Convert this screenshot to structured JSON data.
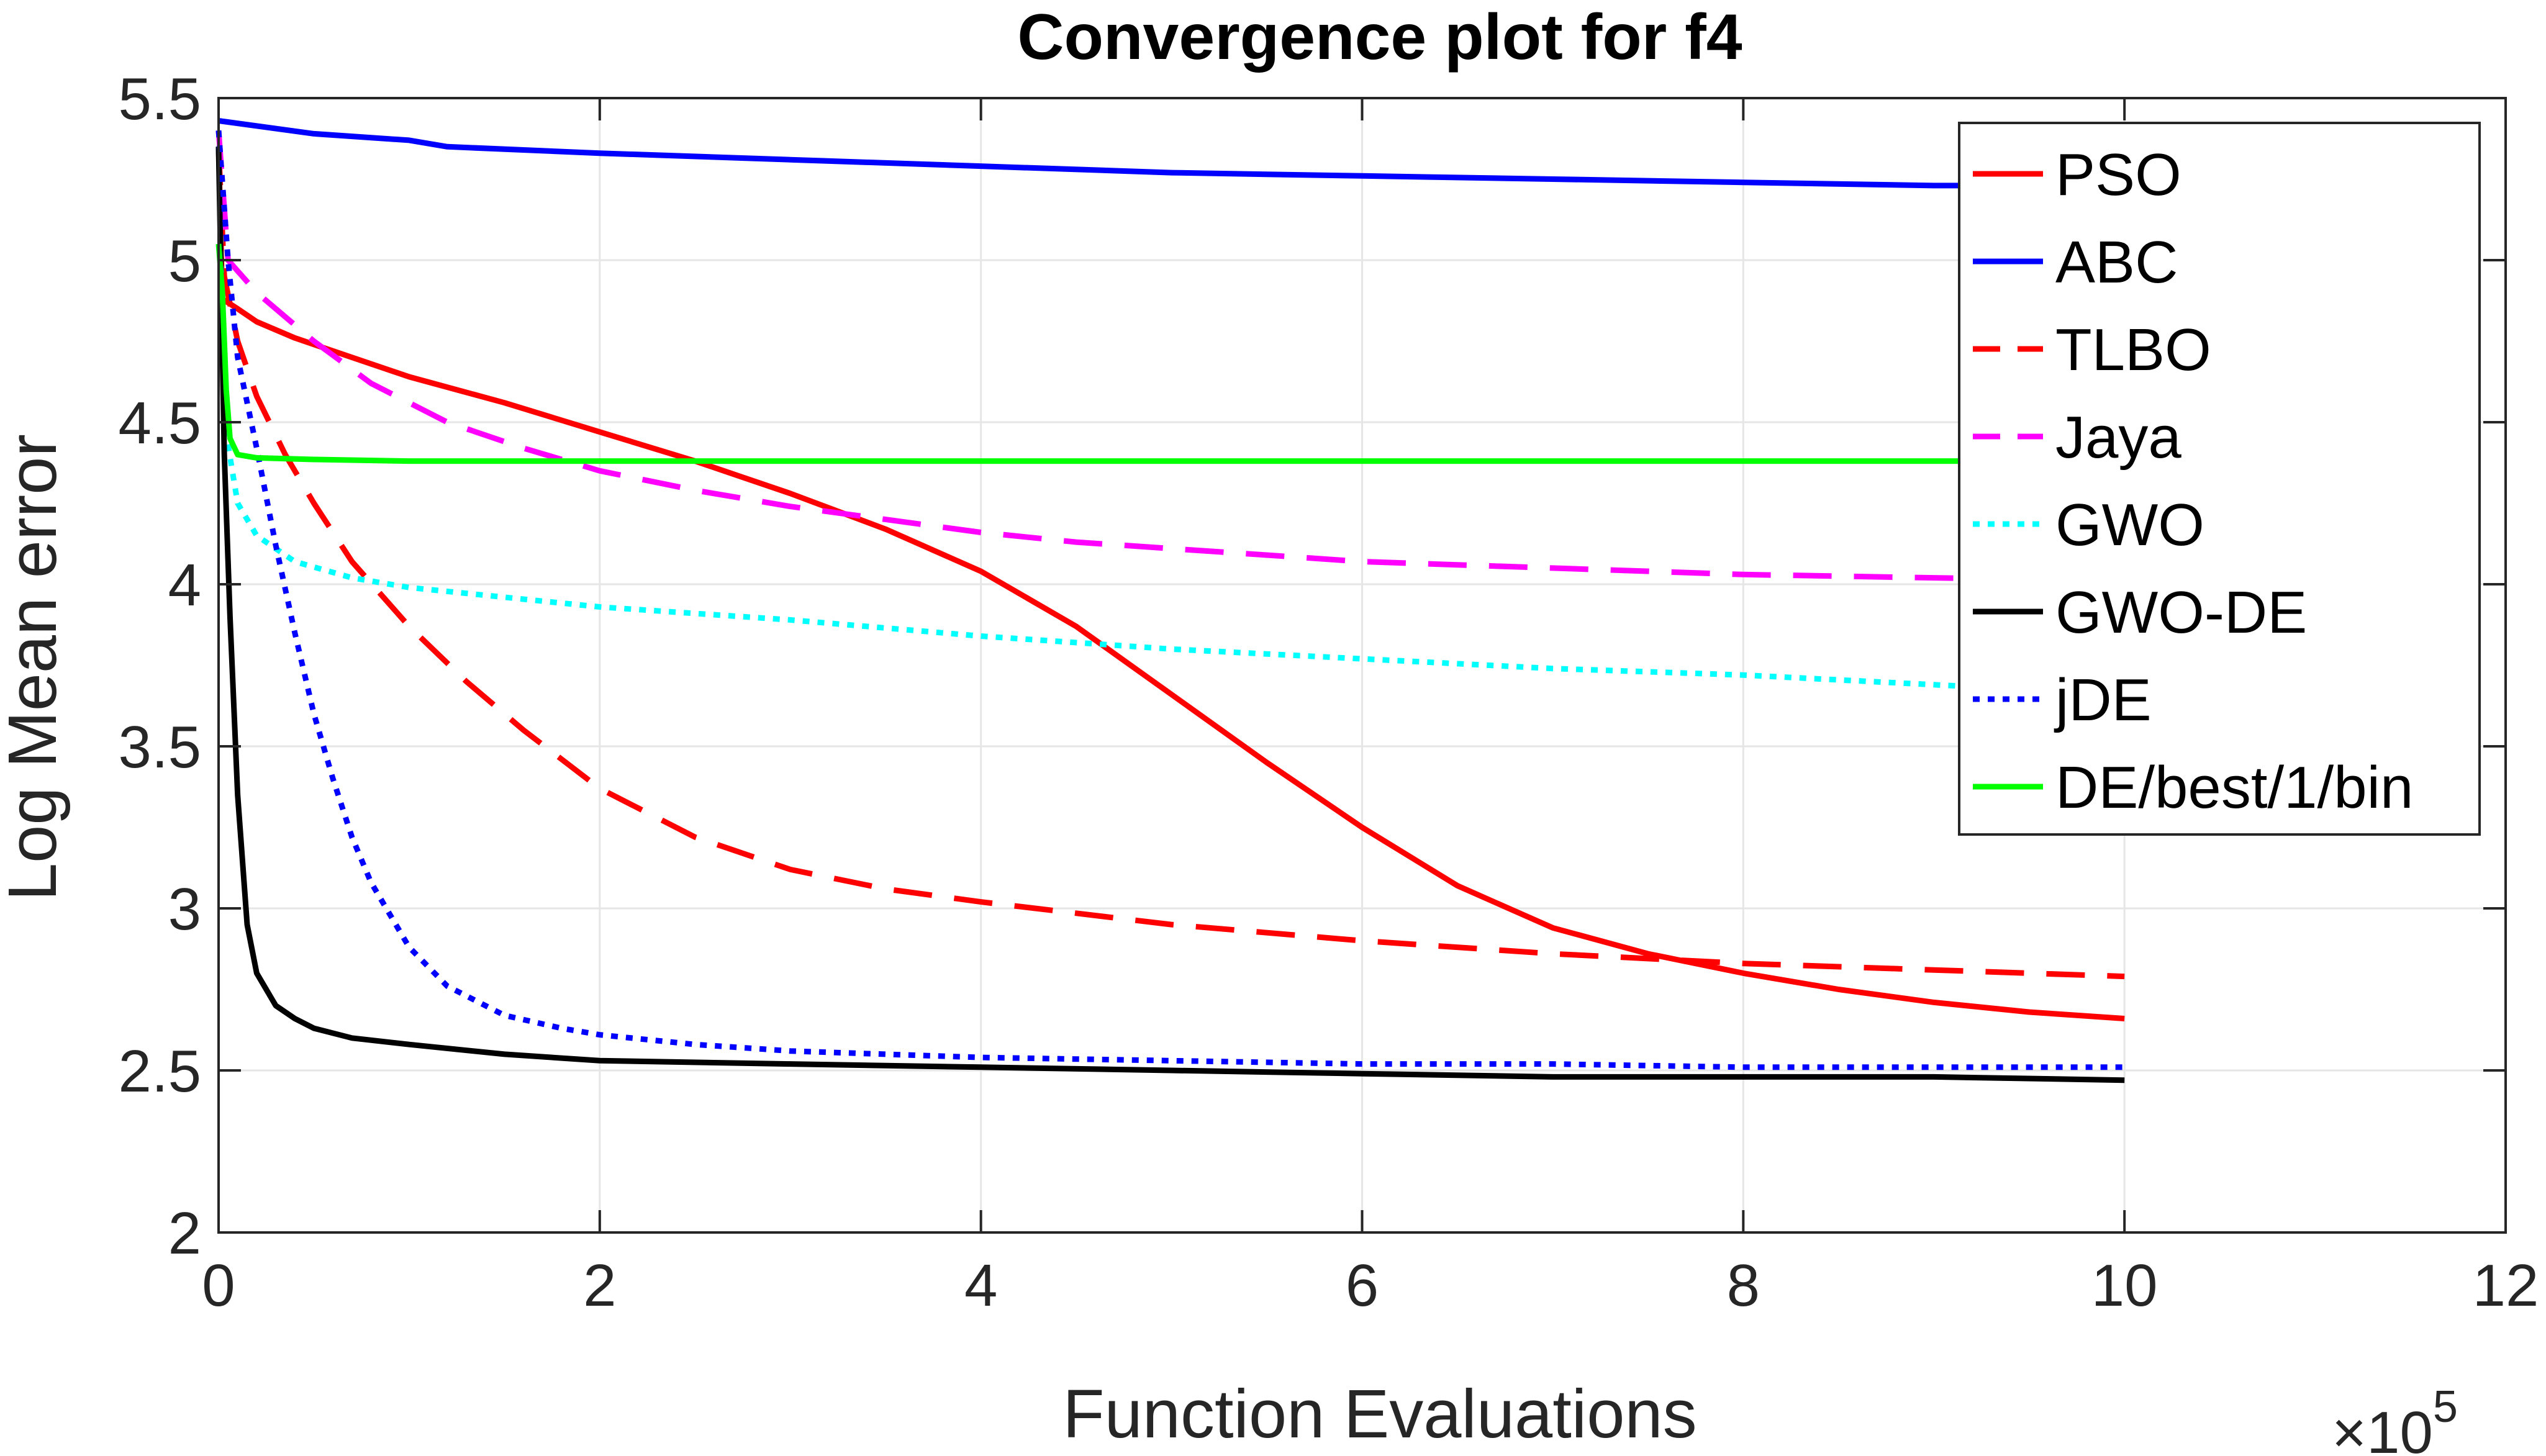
{
  "chart_data": {
    "type": "line",
    "title": "Convergence plot for f4",
    "xlabel": "Function Evaluations",
    "ylabel": "Log Mean error",
    "x_exponent_label": "×10",
    "x_exponent": "5",
    "xlim": [
      0,
      12
    ],
    "ylim": [
      2,
      5.5
    ],
    "xticks": [
      "0",
      "2",
      "4",
      "6",
      "8",
      "10",
      "12"
    ],
    "yticks": [
      "2",
      "2.5",
      "3",
      "3.5",
      "4",
      "4.5",
      "5",
      "5.5"
    ],
    "grid": true,
    "legend_position": "top-right",
    "series": [
      {
        "name": "PSO",
        "color": "#ff0000",
        "style": "solid",
        "x": [
          0.0,
          0.02,
          0.1,
          0.2,
          0.4,
          0.7,
          1.0,
          1.5,
          2.0,
          2.5,
          3.0,
          3.5,
          4.0,
          4.5,
          5.0,
          5.5,
          6.0,
          6.5,
          7.0,
          7.5,
          8.0,
          8.5,
          9.0,
          9.5,
          10.0
        ],
        "y": [
          5.35,
          4.88,
          4.85,
          4.81,
          4.76,
          4.7,
          4.64,
          4.56,
          4.47,
          4.38,
          4.28,
          4.17,
          4.04,
          3.87,
          3.66,
          3.45,
          3.25,
          3.07,
          2.94,
          2.86,
          2.8,
          2.75,
          2.71,
          2.68,
          2.66
        ]
      },
      {
        "name": "ABC",
        "color": "#0000ff",
        "style": "solid",
        "x": [
          0.0,
          0.5,
          1.0,
          1.2,
          2.0,
          3.0,
          4.0,
          5.0,
          6.0,
          7.0,
          8.0,
          9.0,
          10.0
        ],
        "y": [
          5.43,
          5.39,
          5.37,
          5.35,
          5.33,
          5.31,
          5.29,
          5.27,
          5.26,
          5.25,
          5.24,
          5.23,
          5.23
        ]
      },
      {
        "name": "TLBO",
        "color": "#ff0000",
        "style": "dashed",
        "x": [
          0.0,
          0.03,
          0.1,
          0.2,
          0.35,
          0.5,
          0.7,
          1.0,
          1.3,
          1.6,
          2.0,
          2.5,
          3.0,
          3.5,
          4.0,
          5.0,
          6.0,
          7.0,
          8.0,
          9.0,
          10.0
        ],
        "y": [
          5.35,
          4.95,
          4.75,
          4.58,
          4.4,
          4.25,
          4.07,
          3.87,
          3.7,
          3.55,
          3.37,
          3.22,
          3.12,
          3.06,
          3.02,
          2.95,
          2.9,
          2.86,
          2.83,
          2.81,
          2.79
        ]
      },
      {
        "name": "Jaya",
        "color": "#ff00ff",
        "style": "dashed",
        "x": [
          0.0,
          0.05,
          0.2,
          0.5,
          0.8,
          1.2,
          1.6,
          2.0,
          2.5,
          3.0,
          3.5,
          4.0,
          4.5,
          5.0,
          5.5,
          6.0,
          7.0,
          8.0,
          9.0,
          10.0
        ],
        "y": [
          5.4,
          5.0,
          4.9,
          4.75,
          4.62,
          4.5,
          4.42,
          4.35,
          4.29,
          4.24,
          4.2,
          4.16,
          4.13,
          4.11,
          4.09,
          4.07,
          4.05,
          4.03,
          4.02,
          4.01
        ]
      },
      {
        "name": "GWO",
        "color": "#00ffff",
        "style": "dotted",
        "x": [
          0.0,
          0.03,
          0.1,
          0.2,
          0.4,
          0.7,
          1.0,
          1.5,
          2.0,
          3.0,
          4.0,
          5.0,
          6.0,
          7.0,
          8.0,
          9.0,
          10.0
        ],
        "y": [
          5.35,
          4.5,
          4.25,
          4.15,
          4.07,
          4.02,
          3.99,
          3.96,
          3.93,
          3.89,
          3.84,
          3.8,
          3.77,
          3.74,
          3.72,
          3.69,
          3.66
        ]
      },
      {
        "name": "GWO-DE",
        "color": "#000000",
        "style": "solid",
        "x": [
          0.0,
          0.03,
          0.06,
          0.1,
          0.15,
          0.2,
          0.3,
          0.4,
          0.5,
          0.7,
          1.0,
          1.5,
          2.0,
          3.0,
          4.0,
          5.0,
          6.0,
          7.0,
          8.0,
          9.0,
          10.0
        ],
        "y": [
          5.35,
          4.4,
          3.9,
          3.35,
          2.95,
          2.8,
          2.7,
          2.66,
          2.63,
          2.6,
          2.58,
          2.55,
          2.53,
          2.52,
          2.51,
          2.5,
          2.49,
          2.48,
          2.48,
          2.48,
          2.47
        ]
      },
      {
        "name": "jDE",
        "color": "#0000ff",
        "style": "dotted",
        "x": [
          0.0,
          0.05,
          0.1,
          0.2,
          0.3,
          0.4,
          0.5,
          0.6,
          0.7,
          0.8,
          1.0,
          1.2,
          1.5,
          1.8,
          2.0,
          2.5,
          3.0,
          4.0,
          5.0,
          6.0,
          7.0,
          8.0,
          9.0,
          10.0
        ],
        "y": [
          5.4,
          5.0,
          4.7,
          4.42,
          4.12,
          3.85,
          3.6,
          3.4,
          3.22,
          3.08,
          2.88,
          2.76,
          2.67,
          2.63,
          2.61,
          2.58,
          2.56,
          2.54,
          2.53,
          2.52,
          2.52,
          2.51,
          2.51,
          2.51
        ]
      },
      {
        "name": "DE/best/1/bin",
        "color": "#00ff00",
        "style": "solid",
        "x": [
          0.0,
          0.02,
          0.04,
          0.06,
          0.1,
          0.2,
          0.5,
          1.0,
          2.0,
          4.0,
          6.0,
          8.0,
          10.0
        ],
        "y": [
          5.05,
          4.9,
          4.6,
          4.45,
          4.4,
          4.39,
          4.385,
          4.38,
          4.38,
          4.38,
          4.38,
          4.38,
          4.38
        ]
      }
    ]
  }
}
